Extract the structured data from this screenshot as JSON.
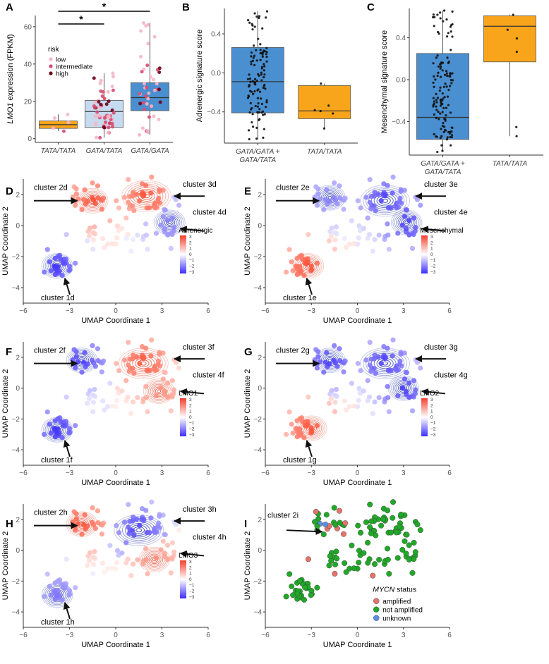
{
  "colors": {
    "orange": "#f9a51b",
    "blue": "#4a8fd0",
    "lightblue": "#c6dbef",
    "risk_low": "#f4b6c6",
    "risk_intermediate": "#d94a6e",
    "risk_high": "#6b0018",
    "contour_pos": "#e4452a",
    "contour_neg": "#1f2fa8",
    "mycn_amplified": "#e3746b",
    "mycn_not_amplified": "#22a829",
    "mycn_unknown": "#5d8fe0"
  },
  "panel_letters": [
    "A",
    "B",
    "C",
    "D",
    "E",
    "F",
    "G",
    "H",
    "I"
  ],
  "umap_axis": {
    "xlabel": "UMAP Coordinate 1",
    "ylabel": "UMAP Coordinate 2",
    "xticks": [
      "−6",
      "−3",
      "0",
      "3",
      "6"
    ],
    "yticks": [
      "2",
      "0",
      "−2",
      "−4"
    ]
  },
  "colorbar_ticks": [
    "3",
    "2",
    "1",
    "0",
    "−1",
    "−2",
    "−3"
  ],
  "chart_data": [
    {
      "panel": "A",
      "type": "box",
      "ylabel_italic": "LMO1",
      "ylabel_rest": " expression (FPKM)",
      "categories": [
        "TATA/TATA",
        "GATA/TATA",
        "GATA/GATA"
      ],
      "yticks": [
        0,
        20,
        40,
        60
      ],
      "ylim": [
        -2,
        66
      ],
      "boxes": [
        {
          "min": 4,
          "q1": 5.5,
          "median": 7.5,
          "q3": 9.5,
          "max": 13
        },
        {
          "min": 0.5,
          "q1": 6,
          "median": 14.5,
          "q3": 20.5,
          "max": 35
        },
        {
          "min": 2,
          "q1": 15,
          "median": 22,
          "q3": 30,
          "max": 62
        }
      ],
      "significance": [
        "*",
        "*"
      ],
      "legend": {
        "title": "risk",
        "items": [
          "low",
          "intermediate",
          "high"
        ]
      }
    },
    {
      "panel": "B",
      "type": "box",
      "ylabel": "Adrenergic signature score",
      "categories": [
        "GATA/GATA +\nGATA/TATA",
        "TATA/TATA"
      ],
      "yticks": [
        -0.4,
        0.0,
        0.4
      ],
      "ylabels": [
        "−0.4",
        "0.0",
        "0.4"
      ],
      "ylim": [
        -0.72,
        0.66
      ],
      "boxes": [
        {
          "min": -0.68,
          "q1": -0.41,
          "median": -0.09,
          "q3": 0.26,
          "max": 0.63
        },
        {
          "min": -0.57,
          "q1": -0.47,
          "median": -0.39,
          "q3": -0.13,
          "max": -0.11
        }
      ]
    },
    {
      "panel": "C",
      "type": "box",
      "ylabel": "Mesenchymal signature score",
      "categories": [
        "GATA/GATA +\nGATA/TATA",
        "TATA/TATA"
      ],
      "yticks": [
        -0.4,
        0.0,
        0.4
      ],
      "ylabels": [
        "−0.4",
        "0.0",
        "0.4"
      ],
      "ylim": [
        -0.72,
        0.68
      ],
      "boxes": [
        {
          "min": -0.69,
          "q1": -0.57,
          "median": -0.36,
          "q3": 0.25,
          "max": 0.66
        },
        {
          "min": -0.54,
          "q1": 0.17,
          "median": 0.51,
          "q3": 0.61,
          "max": 0.62
        }
      ]
    },
    {
      "panel": "D",
      "type": "umap-contour",
      "colorbar_label": "Adrenergic",
      "clusters": [
        {
          "label": "cluster 1d",
          "x": -3.8,
          "y": -2.6,
          "score": -3
        },
        {
          "label": "cluster 2d",
          "x": -1.5,
          "y": 1.6,
          "score": 3
        },
        {
          "label": "cluster 3d",
          "x": 2.0,
          "y": 1.9,
          "score": 3
        },
        {
          "label": "cluster 4d",
          "x": 3.5,
          "y": 0.2,
          "score": -2
        }
      ]
    },
    {
      "panel": "E",
      "type": "umap-contour",
      "colorbar_label": "Mesenchymal",
      "clusters": [
        {
          "label": "cluster 1e",
          "x": -3.2,
          "y": -2.6,
          "score": 3
        },
        {
          "label": "cluster 2e",
          "x": -1.8,
          "y": 1.8,
          "score": -2
        },
        {
          "label": "cluster 3e",
          "x": 1.8,
          "y": 1.6,
          "score": -3
        },
        {
          "label": "cluster 4e",
          "x": 3.2,
          "y": 0.2,
          "score": -3
        }
      ]
    },
    {
      "panel": "F",
      "type": "umap-contour",
      "colorbar_label": "LMO1",
      "clusters": [
        {
          "label": "cluster 1f",
          "x": -3.8,
          "y": -2.7,
          "score": -3
        },
        {
          "label": "cluster 2f",
          "x": -2.2,
          "y": 1.8,
          "score": -3
        },
        {
          "label": "cluster 3f",
          "x": 1.8,
          "y": 1.6,
          "score": 3
        },
        {
          "label": "cluster 4f",
          "x": 2.8,
          "y": -0.2,
          "score": 2
        }
      ]
    },
    {
      "panel": "G",
      "type": "umap-contour",
      "colorbar_label": "LMO2",
      "clusters": [
        {
          "label": "cluster 1g",
          "x": -3.0,
          "y": -2.6,
          "score": 3
        },
        {
          "label": "cluster 2g",
          "x": -1.8,
          "y": 1.8,
          "score": -3
        },
        {
          "label": "cluster 3g",
          "x": 1.8,
          "y": 1.6,
          "score": -3
        },
        {
          "label": "cluster 4g",
          "x": 3.0,
          "y": 0.0,
          "score": -3
        }
      ]
    },
    {
      "panel": "H",
      "type": "umap-contour",
      "colorbar_label": "LMO3",
      "clusters": [
        {
          "label": "cluster 1h",
          "x": -3.8,
          "y": -2.9,
          "score": -2
        },
        {
          "label": "cluster 2h",
          "x": -2.2,
          "y": 1.7,
          "score": 3
        },
        {
          "label": "cluster 3h",
          "x": 1.5,
          "y": 1.3,
          "score": -3
        },
        {
          "label": "cluster 4h",
          "x": 2.5,
          "y": -0.6,
          "score": 2
        }
      ]
    },
    {
      "panel": "I",
      "type": "scatter",
      "label_cluster": "cluster 2i",
      "legend_title_italic": "MYCN",
      "legend_title_rest": " status",
      "legend_items": [
        "amplified",
        "not amplified",
        "unknown"
      ]
    }
  ]
}
